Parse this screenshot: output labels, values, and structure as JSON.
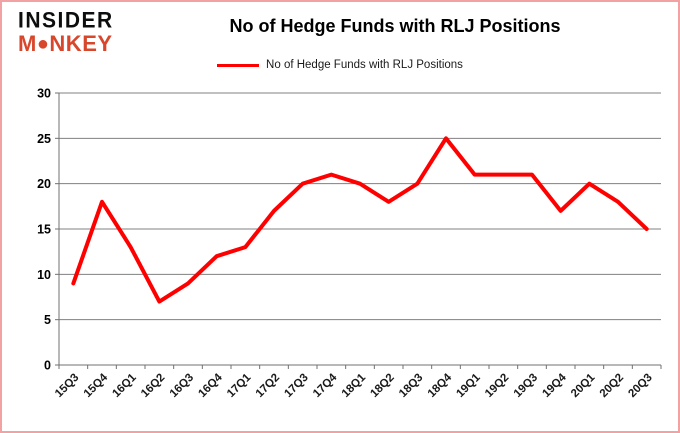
{
  "logo": {
    "line1": "INSIDER",
    "line2_pre": "M",
    "line2_o": "●",
    "line2_post": "NKEY"
  },
  "header": {
    "title": "No of Hedge Funds with RLJ Positions"
  },
  "legend": {
    "label": "No of Hedge Funds with RLJ Positions"
  },
  "colors": {
    "series_red": "#FF0000",
    "logo_red": "#D8472C",
    "grid_gray": "#808080",
    "axis_gray": "#707070",
    "tick_text": "#1a1a1a",
    "frame_border": "#F2A2A2"
  },
  "chart_data": {
    "type": "line",
    "title": "No of Hedge Funds with RLJ Positions",
    "categories": [
      "15Q3",
      "15Q4",
      "16Q1",
      "16Q2",
      "16Q3",
      "16Q4",
      "17Q1",
      "17Q2",
      "17Q3",
      "17Q4",
      "18Q1",
      "18Q2",
      "18Q3",
      "18Q4",
      "19Q1",
      "19Q2",
      "19Q3",
      "19Q4",
      "20Q1",
      "20Q2",
      "20Q3"
    ],
    "series": [
      {
        "name": "No of Hedge Funds with RLJ Positions",
        "color": "#FF0000",
        "values": [
          9,
          18,
          13,
          7,
          9,
          12,
          13,
          17,
          20,
          21,
          20,
          18,
          20,
          25,
          21,
          21,
          21,
          17,
          20,
          18,
          15
        ]
      }
    ],
    "xlabel": "",
    "ylabel": "",
    "ylim": [
      0,
      30
    ],
    "ytick_step": 5,
    "yticks": [
      0,
      5,
      10,
      15,
      20,
      25,
      30
    ],
    "grid": true,
    "legend_position": "top"
  }
}
